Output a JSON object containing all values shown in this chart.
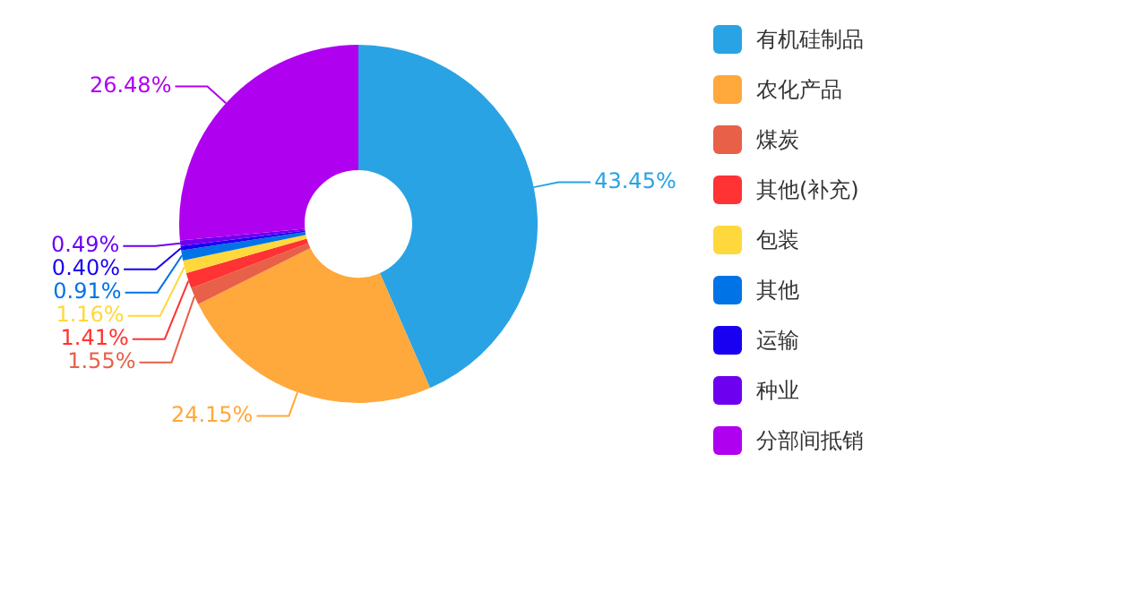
{
  "chart_data": {
    "type": "donut",
    "categories": [
      "有机硅制品",
      "农化产品",
      "煤炭",
      "其他(补充)",
      "包装",
      "其他",
      "运输",
      "种业",
      "分部间抵销"
    ],
    "values": [
      43.45,
      24.15,
      1.55,
      1.41,
      1.16,
      0.91,
      0.4,
      0.49,
      26.48
    ],
    "value_labels": [
      "43.45%",
      "24.15%",
      "1.55%",
      "1.41%",
      "1.16%",
      "0.91%",
      "0.40%",
      "0.49%",
      "26.48%"
    ],
    "colors": [
      "#29a3e3",
      "#ffa83b",
      "#e86048",
      "#ff3333",
      "#ffd83b",
      "#0073e6",
      "#1a00f0",
      "#6e00f0",
      "#b000f0"
    ],
    "legend": "right"
  }
}
